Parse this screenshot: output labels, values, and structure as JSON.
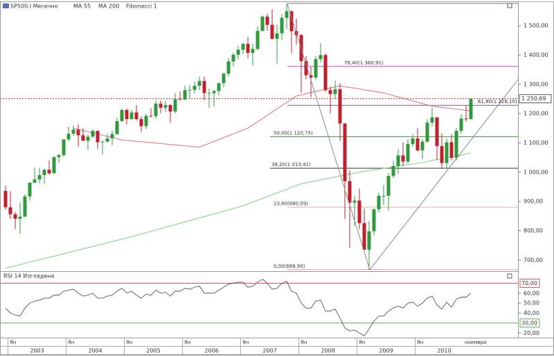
{
  "chart_data": [
    {
      "type": "candlestick",
      "title": "SP500.I Месечно",
      "open": [
        936,
        880,
        856,
        841,
        848,
        917,
        964,
        975,
        990,
        1008,
        996,
        1051,
        1058,
        1112,
        1131,
        1145,
        1126,
        1107,
        1121,
        1141,
        1102,
        1104,
        1115,
        1130,
        1174,
        1212,
        1181,
        1204,
        1181,
        1157,
        1192,
        1191,
        1234,
        1220,
        1229,
        1207,
        1249,
        1248,
        1280,
        1281,
        1295,
        1311,
        1270,
        1270,
        1277,
        1304,
        1336,
        1378,
        1401,
        1418,
        1438,
        1407,
        1421,
        1482,
        1531,
        1503,
        1455,
        1474,
        1527,
        1549,
        1481,
        1468,
        1379,
        1331,
        1323,
        1386,
        1400,
        1280,
        1267,
        1283,
        1166,
        969,
        896,
        903,
        826,
        735,
        798,
        873,
        919,
        919,
        987,
        1021,
        1057,
        1036,
        1096,
        1115,
        1074,
        1104,
        1169,
        1187,
        1089,
        1031,
        1102,
        1049,
        1141,
        1183,
        1181
      ],
      "high": [
        954,
        935,
        864,
        895,
        924,
        965,
        1016,
        1015,
        1012,
        1040,
        1054,
        1063,
        1112,
        1155,
        1159,
        1163,
        1150,
        1128,
        1146,
        1141,
        1109,
        1131,
        1142,
        1184,
        1217,
        1217,
        1212,
        1229,
        1191,
        1199,
        1219,
        1245,
        1245,
        1243,
        1233,
        1270,
        1276,
        1295,
        1297,
        1310,
        1326,
        1326,
        1285,
        1280,
        1306,
        1340,
        1390,
        1407,
        1431,
        1441,
        1462,
        1439,
        1498,
        1535,
        1541,
        1556,
        1504,
        1539,
        1576,
        1553,
        1524,
        1472,
        1396,
        1359,
        1397,
        1440,
        1405,
        1292,
        1313,
        1303,
        1167,
        1007,
        919,
        944,
        876,
        833,
        876,
        930,
        956,
        997,
        1039,
        1080,
        1101,
        1113,
        1130,
        1150,
        1113,
        1181,
        1220,
        1187,
        1132,
        1115,
        1130,
        1151,
        1197,
        1228,
        1252
      ],
      "low": [
        872,
        840,
        806,
        789,
        847,
        902,
        963,
        962,
        960,
        990,
        995,
        1031,
        1053,
        1106,
        1124,
        1087,
        1107,
        1076,
        1118,
        1078,
        1060,
        1102,
        1091,
        1128,
        1173,
        1163,
        1180,
        1176,
        1137,
        1147,
        1188,
        1183,
        1201,
        1205,
        1168,
        1201,
        1246,
        1245,
        1253,
        1268,
        1280,
        1245,
        1219,
        1224,
        1261,
        1290,
        1326,
        1360,
        1385,
        1403,
        1389,
        1364,
        1416,
        1481,
        1484,
        1453,
        1371,
        1451,
        1489,
        1406,
        1435,
        1271,
        1317,
        1257,
        1315,
        1374,
        1273,
        1200,
        1249,
        1107,
        840,
        741,
        816,
        805,
        735,
        667,
        784,
        862,
        888,
        869,
        979,
        993,
        1020,
        1029,
        1086,
        1071,
        1045,
        1101,
        1157,
        1040,
        1011,
        1011,
        1040,
        1040,
        1132,
        1173,
        1180
      ],
      "close": [
        880,
        856,
        841,
        848,
        917,
        964,
        975,
        990,
        1008,
        996,
        1051,
        1058,
        1112,
        1131,
        1145,
        1126,
        1107,
        1121,
        1141,
        1102,
        1104,
        1115,
        1130,
        1174,
        1212,
        1181,
        1204,
        1181,
        1157,
        1192,
        1191,
        1234,
        1220,
        1229,
        1207,
        1249,
        1248,
        1280,
        1281,
        1295,
        1311,
        1270,
        1270,
        1277,
        1304,
        1336,
        1378,
        1401,
        1418,
        1438,
        1407,
        1421,
        1482,
        1531,
        1503,
        1455,
        1474,
        1527,
        1549,
        1481,
        1468,
        1379,
        1331,
        1323,
        1386,
        1400,
        1280,
        1267,
        1283,
        1166,
        969,
        896,
        903,
        826,
        735,
        798,
        873,
        919,
        919,
        987,
        1021,
        1057,
        1036,
        1096,
        1115,
        1074,
        1104,
        1169,
        1187,
        1089,
        1031,
        1102,
        1049,
        1141,
        1183,
        1181,
        1250.69
      ],
      "up_color": "#2f9a3c",
      "down_color": "#c01f2c",
      "ylim": [
        664,
        1576
      ],
      "yticks": [
        {
          "value": 700,
          "label": "700,00"
        },
        {
          "value": 800,
          "label": "800,00"
        },
        {
          "value": 900,
          "label": "900,00"
        },
        {
          "value": 1000,
          "label": "1 000,00"
        },
        {
          "value": 1100,
          "label": "1 100,00"
        },
        {
          "value": 1200,
          "label": "1 200,00"
        },
        {
          "value": 1300,
          "label": "1 300,00"
        },
        {
          "value": 1400,
          "label": "1 400,00"
        },
        {
          "value": 1500,
          "label": "1 500,00"
        }
      ],
      "last_price": {
        "value": 1250.69,
        "label": "1 250,69",
        "color": "#c01f2c"
      },
      "overlays": [
        {
          "name": "MA 55",
          "color": "#e8808c",
          "values": [
            null,
            null,
            null,
            null,
            null,
            null,
            null,
            null,
            null,
            null,
            null,
            null,
            null,
            null,
            1150,
            1146,
            1142,
            1138,
            1134,
            1130,
            1126,
            1122,
            1118,
            1114,
            1110,
            1108,
            1107,
            1105,
            1104,
            1102,
            1101,
            1099,
            1098,
            1096,
            1094,
            1093,
            1091,
            1090,
            1088,
            1087,
            1085,
            1092,
            1098,
            1105,
            1111,
            1118,
            1124,
            1131,
            1137,
            1144,
            1150,
            1161,
            1172,
            1183,
            1194,
            1205,
            1216,
            1227,
            1238,
            1249,
            1260,
            1264,
            1268,
            1272,
            1276,
            1279,
            1283,
            1287,
            1291,
            1295,
            1292,
            1289,
            1287,
            1284,
            1281,
            1278,
            1276,
            1273,
            1270,
            1266,
            1261,
            1257,
            1252,
            1248,
            1243,
            1239,
            1234,
            1230,
            1225,
            1223,
            1221,
            1219,
            1217,
            1215,
            1213,
            1211,
            1210
          ]
        },
        {
          "name": "MA 200",
          "color": "#8ed88e",
          "values": [
            672,
            676,
            680,
            684,
            688,
            693,
            697,
            701,
            705,
            709,
            713,
            717,
            721,
            726,
            730,
            734,
            738,
            742,
            746,
            750,
            754,
            759,
            763,
            767,
            771,
            775,
            780,
            784,
            789,
            793,
            798,
            802,
            807,
            812,
            816,
            821,
            825,
            830,
            834,
            839,
            844,
            848,
            853,
            857,
            862,
            866,
            871,
            876,
            880,
            885,
            891,
            898,
            904,
            910,
            916,
            923,
            929,
            935,
            941,
            948,
            954,
            960,
            963,
            967,
            970,
            973,
            977,
            980,
            983,
            987,
            990,
            993,
            997,
            1000,
            1003,
            1005,
            1008,
            1010,
            1013,
            1015,
            1018,
            1020,
            1023,
            1025,
            1028,
            1030,
            1033,
            1036,
            1040,
            1043,
            1046,
            1049,
            1052,
            1055,
            1058,
            1062,
            1065
          ]
        }
      ],
      "fibonacci": {
        "name": "Fibonacci 1",
        "range_high": 1576.09,
        "range_color": "#6a6ad0",
        "levels": [
          {
            "value": 666.9,
            "label": "0,00(666,90)",
            "color": "#e89aa8"
          },
          {
            "value": 880.59,
            "label": "23,60(880,59)",
            "color": "#e8b0b8"
          },
          {
            "value": 1013.41,
            "label": "38,20(1 013,41)",
            "color": "#333333"
          },
          {
            "value": 1120.75,
            "label": "50,00(1 120,75)",
            "color": "#3a9a3a"
          },
          {
            "value": 1228.1,
            "label": "61,80(1 228,10)",
            "color": "#7a5a9a"
          },
          {
            "value": 1360.91,
            "label": "76,40(1 360,91)",
            "color": "#c040c0"
          }
        ]
      }
    },
    {
      "type": "line",
      "title": "RSI 14 Изгладена",
      "color": "#555555",
      "values": [
        45,
        40,
        38,
        37,
        45,
        50,
        52,
        53,
        55,
        55,
        58,
        58,
        62,
        63,
        64,
        60,
        57,
        58,
        60,
        55,
        55,
        57,
        58,
        62,
        65,
        60,
        62,
        58,
        55,
        59,
        58,
        63,
        60,
        61,
        57,
        62,
        62,
        65,
        64,
        66,
        67,
        60,
        60,
        60,
        63,
        66,
        69,
        70,
        71,
        71,
        66,
        67,
        71,
        74,
        70,
        64,
        65,
        70,
        72,
        62,
        60,
        50,
        45,
        45,
        52,
        53,
        42,
        42,
        44,
        35,
        25,
        22,
        23,
        20,
        17,
        24,
        32,
        37,
        37,
        42,
        45,
        47,
        45,
        50,
        51,
        47,
        50,
        55,
        57,
        48,
        44,
        51,
        46,
        54,
        56,
        56,
        60
      ],
      "ylim": [
        16,
        80
      ],
      "yticks": [
        {
          "value": 20,
          "label": "20,00"
        },
        {
          "value": 40,
          "label": "40,00"
        },
        {
          "value": 50,
          "label": "50,00"
        },
        {
          "value": 60,
          "label": "60,00"
        }
      ],
      "bands": [
        {
          "value": 70,
          "label": "70,00",
          "color": "#d85050"
        },
        {
          "value": 30,
          "label": "30,00",
          "color": "#50b050"
        }
      ]
    }
  ],
  "x_axis": {
    "month_marker": "Ян",
    "years": [
      "2003",
      "2004",
      "2005",
      "2006",
      "2007",
      "2008",
      "2009",
      "2010"
    ],
    "end_label": "ноември"
  }
}
